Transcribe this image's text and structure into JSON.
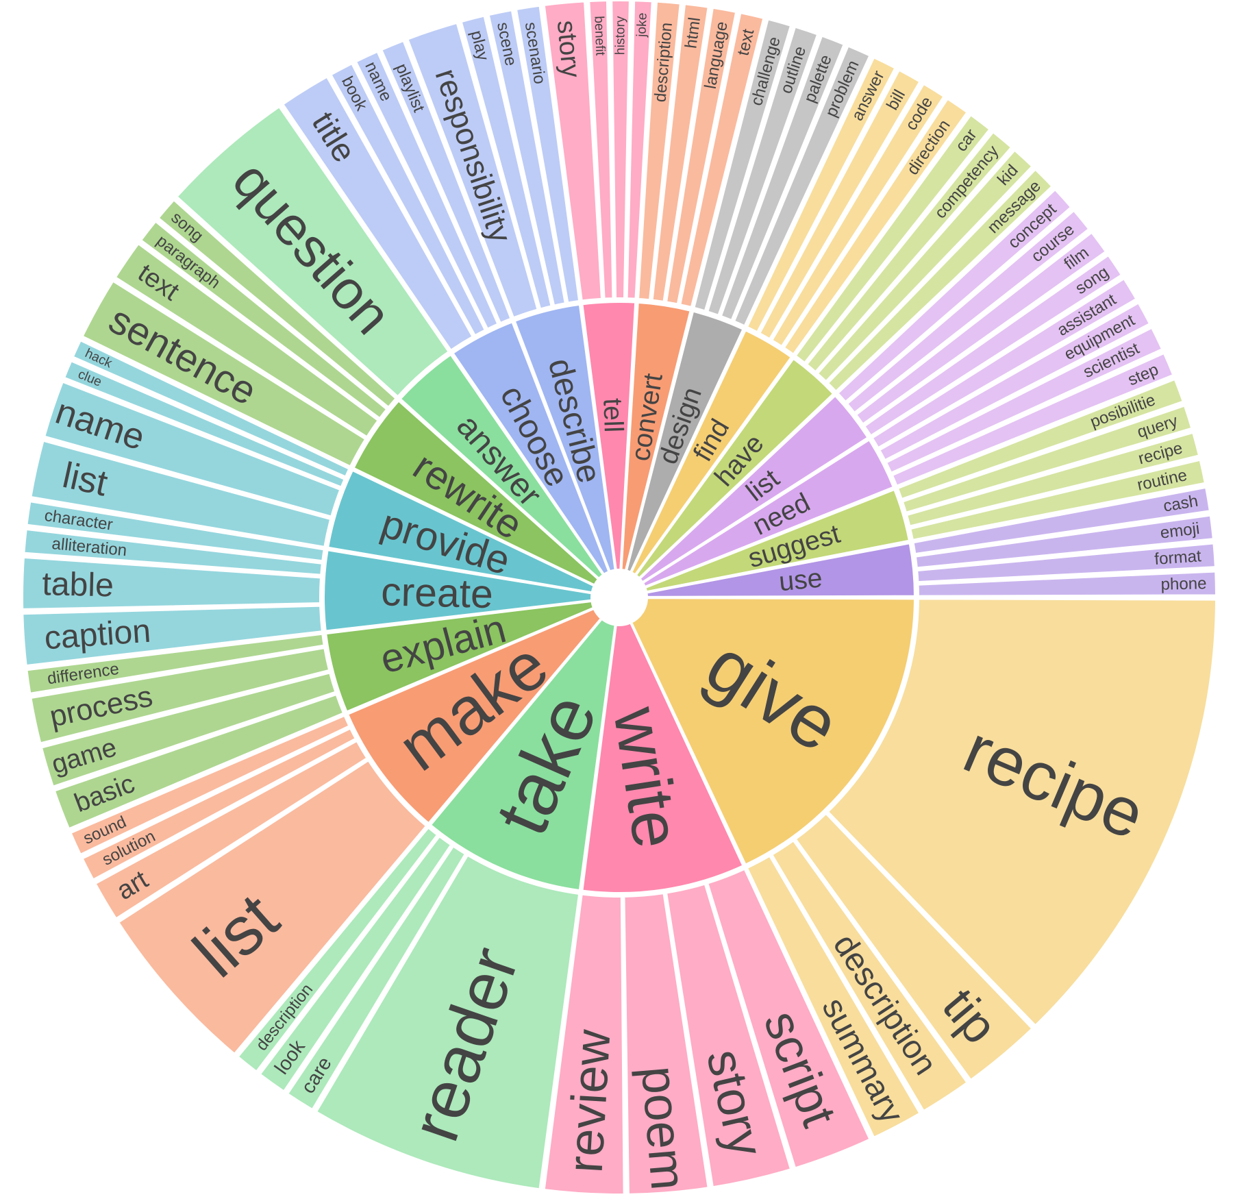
{
  "chart_data": {
    "type": "sunburst",
    "title": "",
    "colors": {
      "give": "#F5CE72",
      "write": "#FF88AE",
      "take": "#8ADF9E",
      "make": "#F89C74",
      "explain": "#8BC460",
      "create": "#68C5CF",
      "provide": "#68C5CF",
      "rewrite": "#8BC460",
      "answer": "#8ADF9E",
      "choose": "#A0B6F2",
      "describe": "#A0B6F2",
      "tell": "#FF88AE",
      "convert": "#F89C74",
      "design": "#ADADAD",
      "find": "#F5CE72",
      "have": "#C3D878",
      "list": "#D8A8EE",
      "need": "#D8A8EE",
      "suggest": "#C3D878",
      "use": "#B295E6"
    },
    "segments": [
      {
        "label": "use",
        "value": 2.0,
        "children": [
          {
            "label": "phone",
            "value": 0.5
          },
          {
            "label": "format",
            "value": 0.5
          },
          {
            "label": "emoji",
            "value": 0.5
          },
          {
            "label": "cash",
            "value": 0.5
          }
        ]
      },
      {
        "label": "suggest",
        "value": 2.0,
        "children": [
          {
            "label": "routine",
            "value": 0.5
          },
          {
            "label": "recipe",
            "value": 0.5
          },
          {
            "label": "query",
            "value": 0.5
          },
          {
            "label": "posibilitie",
            "value": 0.5
          }
        ]
      },
      {
        "label": "need",
        "value": 2.0,
        "children": [
          {
            "label": "step",
            "value": 0.5
          },
          {
            "label": "scientist",
            "value": 0.5
          },
          {
            "label": "equipment",
            "value": 0.5
          },
          {
            "label": "assistant",
            "value": 0.5
          }
        ]
      },
      {
        "label": "list",
        "value": 2.0,
        "children": [
          {
            "label": "song",
            "value": 0.5
          },
          {
            "label": "film",
            "value": 0.5
          },
          {
            "label": "course",
            "value": 0.5
          },
          {
            "label": "concept",
            "value": 0.5
          }
        ]
      },
      {
        "label": "have",
        "value": 2.0,
        "children": [
          {
            "label": "message",
            "value": 0.5
          },
          {
            "label": "kid",
            "value": 0.5
          },
          {
            "label": "competency",
            "value": 0.5
          },
          {
            "label": "car",
            "value": 0.5
          }
        ]
      },
      {
        "label": "find",
        "value": 2.0,
        "children": [
          {
            "label": "direction",
            "value": 0.5
          },
          {
            "label": "code",
            "value": 0.5
          },
          {
            "label": "bill",
            "value": 0.5
          },
          {
            "label": "answer",
            "value": 0.5
          }
        ]
      },
      {
        "label": "design",
        "value": 2.0,
        "children": [
          {
            "label": "problem",
            "value": 0.5
          },
          {
            "label": "palette",
            "value": 0.5
          },
          {
            "label": "outline",
            "value": 0.5
          },
          {
            "label": "challenge",
            "value": 0.5
          }
        ]
      },
      {
        "label": "convert",
        "value": 2.0,
        "children": [
          {
            "label": "text",
            "value": 0.5
          },
          {
            "label": "language",
            "value": 0.5
          },
          {
            "label": "html",
            "value": 0.5
          },
          {
            "label": "description",
            "value": 0.5
          }
        ]
      },
      {
        "label": "tell",
        "value": 2.0,
        "children": [
          {
            "label": "joke",
            "value": 0.4
          },
          {
            "label": "history",
            "value": 0.4
          },
          {
            "label": "benefit",
            "value": 0.4
          },
          {
            "label": "story",
            "value": 0.8
          }
        ]
      },
      {
        "label": "describe",
        "value": 2.5,
        "children": [
          {
            "label": "scenario",
            "value": 0.5
          },
          {
            "label": "scene",
            "value": 0.5
          },
          {
            "label": "play",
            "value": 0.5
          },
          {
            "label": "responsibility",
            "value": 1.0
          }
        ]
      },
      {
        "label": "choose",
        "value": 2.5,
        "children": [
          {
            "label": "playlist",
            "value": 0.5
          },
          {
            "label": "name",
            "value": 0.5
          },
          {
            "label": "book",
            "value": 0.5
          },
          {
            "label": "title",
            "value": 1.0
          }
        ]
      },
      {
        "label": "answer",
        "value": 2.5,
        "children": [
          {
            "label": "question",
            "value": 2.5
          }
        ]
      },
      {
        "label": "rewrite",
        "value": 3.0,
        "children": [
          {
            "label": "song",
            "value": 0.5
          },
          {
            "label": "paragraph",
            "value": 0.5
          },
          {
            "label": "text",
            "value": 0.8
          },
          {
            "label": "sentence",
            "value": 1.2
          }
        ]
      },
      {
        "label": "provide",
        "value": 3.0,
        "children": [
          {
            "label": "hack",
            "value": 0.4
          },
          {
            "label": "clue",
            "value": 0.4
          },
          {
            "label": "name",
            "value": 1.1
          },
          {
            "label": "list",
            "value": 1.1
          }
        ]
      },
      {
        "label": "create",
        "value": 3.0,
        "children": [
          {
            "label": "character",
            "value": 0.5
          },
          {
            "label": "alliteration",
            "value": 0.5
          },
          {
            "label": "table",
            "value": 1.0
          },
          {
            "label": "caption",
            "value": 1.0
          }
        ]
      },
      {
        "label": "explain",
        "value": 3.0,
        "children": [
          {
            "label": "difference",
            "value": 0.5
          },
          {
            "label": "process",
            "value": 0.9
          },
          {
            "label": "game",
            "value": 0.8
          },
          {
            "label": "basic",
            "value": 0.8
          }
        ]
      },
      {
        "label": "make",
        "value": 5.0,
        "children": [
          {
            "label": "sound",
            "value": 0.5
          },
          {
            "label": "solution",
            "value": 0.5
          },
          {
            "label": "art",
            "value": 0.8
          },
          {
            "label": "list",
            "value": 3.2
          }
        ]
      },
      {
        "label": "take",
        "value": 6.0,
        "children": [
          {
            "label": "description",
            "value": 0.5
          },
          {
            "label": "look",
            "value": 0.6
          },
          {
            "label": "care",
            "value": 0.6
          },
          {
            "label": "reader",
            "value": 4.3
          }
        ]
      },
      {
        "label": "write",
        "value": 6.0,
        "children": [
          {
            "label": "review",
            "value": 1.5
          },
          {
            "label": "poem",
            "value": 1.5
          },
          {
            "label": "story",
            "value": 1.5
          },
          {
            "label": "script",
            "value": 1.5
          }
        ]
      },
      {
        "label": "give",
        "value": 12.0,
        "children": [
          {
            "label": "summary",
            "value": 1.0
          },
          {
            "label": "description",
            "value": 1.0
          },
          {
            "label": "tip",
            "value": 1.5
          },
          {
            "label": "recipe",
            "value": 8.5
          }
        ]
      }
    ]
  }
}
